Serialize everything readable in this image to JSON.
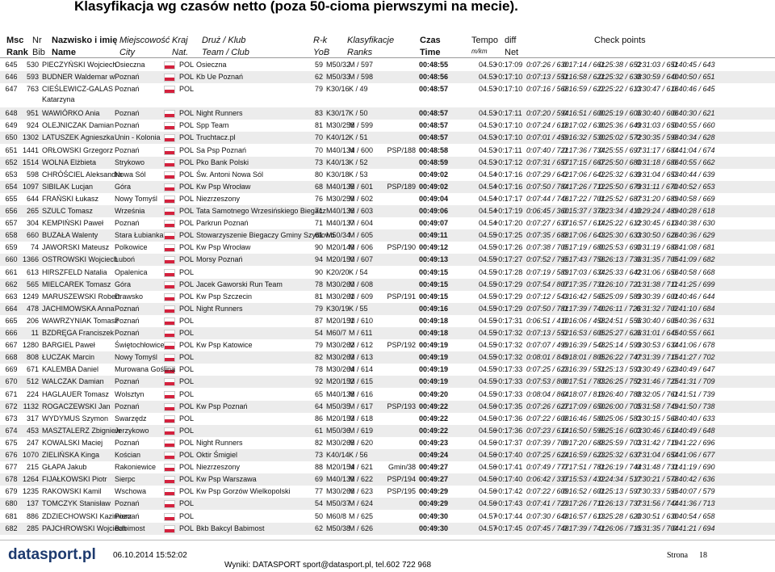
{
  "title": "Klasyfikacja wg czasów netto (poza 50-cioma pierwszymi na mecie).",
  "header": [
    [
      "Msc",
      "Rank"
    ],
    [
      "Nr",
      "Bib"
    ],
    [
      "Nazwisko i imię",
      "Name"
    ],
    [
      "Miejscowość",
      "City"
    ],
    [
      "Kraj",
      "Nat."
    ],
    [
      "Druż / Klub",
      "Team / Club"
    ],
    [
      "R-k",
      "YoB"
    ],
    [
      "Klasyfikacje",
      "Ranks"
    ],
    [
      "Czas",
      "Time"
    ],
    [
      "Tempo",
      "m/km"
    ],
    [
      "diff",
      "Net"
    ],
    [
      "Check points"
    ]
  ],
  "rows": [
    [
      "645",
      "530",
      "PIECZYŃSKI Wojciech",
      "Osieczna",
      "POL",
      "Osieczna",
      "59",
      "M50/32",
      "M / 597",
      null,
      "00:48:55",
      "04.53",
      "+0:17:09",
      "0:07:26 / 630",
      "0:17:14 / 661",
      "0:25:38 / 652",
      "0:31:03 / 651",
      "0:40:45 / 643"
    ],
    [
      "646",
      "593",
      "BUDNER Waldemar w.",
      "Poznań",
      "POL",
      "Kb Ue Poznań",
      "62",
      "M50/33",
      "M / 598",
      null,
      "00:48:56",
      "04.53",
      "+0:17:10",
      "0:07:13 / 551",
      "0:16:58 / 621",
      "0:25:32 / 638",
      "0:30:59 / 640",
      "0:40:50 / 651"
    ],
    [
      "647",
      "763",
      "CIEŚLEWICZ-GALAS\nKatarzyna",
      "Poznań",
      "POL",
      null,
      "79",
      "K30/16",
      "K / 49",
      null,
      "00:48:57",
      "04.53",
      "+0:17:10",
      "0:07:16 / 568",
      "0:16:59 / 622",
      "0:25:22 / 613",
      "0:30:47 / 616",
      "0:40:46 / 645"
    ],
    [
      "648",
      "951",
      "WAWIÓRKO Ania",
      "Poznań",
      "POL",
      "Night Runners",
      "83",
      "K30/17",
      "K / 50",
      null,
      "00:48:57",
      "04.53",
      "+0:17:11",
      "0:07:20 / 594",
      "0:16:51 / 600",
      "0:25:19 / 606",
      "0:30:40 / 606",
      "0:40:30 / 621"
    ],
    [
      "649",
      "924",
      "OLEJNICZAK Damian",
      "Poznań",
      "POL",
      "Spp Team",
      "81",
      "M30/258",
      "M / 599",
      null,
      "00:48:57",
      "04.53",
      "+0:17:10",
      "0:07:24 / 618",
      "0:17:02 / 630",
      "0:25:36 / 649",
      "0:31:03 / 650",
      "0:40:55 / 660"
    ],
    [
      "650",
      "1302",
      "LATUSZEK Agnieszka",
      "Unin - Kolonia",
      "POL",
      "Truchtacz.pl",
      "70",
      "K40/12",
      "K / 51",
      null,
      "00:48:57",
      "04.53",
      "+0:17:10",
      "0:07:01 / 459",
      "0:16:32 / 530",
      "0:25:02 / 572",
      "0:30:35 / 598",
      "0:40:34 / 628"
    ],
    [
      "651",
      "1441",
      "ORŁOWSKI Grzegorz",
      "Poznań",
      "POL",
      "Sa Psp Poznań",
      "70",
      "M40/134",
      "M / 600",
      "PSP/188",
      "00:48:58",
      "04.53",
      "+0:17:11",
      "0:07:40 / 721",
      "0:17:36 / 734",
      "0:25:55 / 697",
      "0:31:17 / 684",
      "0:41:04 / 674"
    ],
    [
      "652",
      "1514",
      "WOLNA Elżbieta",
      "Strykowo",
      "POL",
      "Pko Bank Polski",
      "73",
      "K40/13",
      "K / 52",
      null,
      "00:48:59",
      "04.53",
      "+0:17:12",
      "0:07:31 / 657",
      "0:17:15 / 667",
      "0:25:50 / 680",
      "0:31:18 / 686",
      "0:40:55 / 662"
    ],
    [
      "653",
      "598",
      "CHRÓŚCIEL Aleksandra",
      "Nowa Sól",
      "POL",
      "Św. Antoni Nowa Sól",
      "80",
      "K30/18",
      "K / 53",
      null,
      "00:49:02",
      "04.54",
      "+0:17:16",
      "0:07:29 / 642",
      "0:17:06 / 642",
      "0:25:32 / 639",
      "0:31:04 / 653",
      "0:40:44 / 639"
    ],
    [
      "654",
      "1097",
      "SIBILAK Lucjan",
      "Góra",
      "POL",
      "Kw Psp Wrocław",
      "68",
      "M40/135",
      "M / 601",
      "PSP/189",
      "00:49:02",
      "04.54",
      "+0:17:16",
      "0:07:50 / 784",
      "0:17:26 / 712",
      "0:25:50 / 679",
      "0:31:11 / 670",
      "0:40:52 / 653"
    ],
    [
      "655",
      "644",
      "FRAŃSKI Łukasz",
      "Nowy Tomyśl",
      "POL",
      "Niezrzeszony",
      "76",
      "M30/259",
      "M / 602",
      null,
      "00:49:04",
      "04.54",
      "+0:17:17",
      "0:07:44 / 746",
      "0:17:22 / 701",
      "0:25:52 / 687",
      "0:31:20 / 689",
      "0:40:58 / 669"
    ],
    [
      "656",
      "265",
      "SZULC Tomasz",
      "Września",
      "POL",
      "Tata Samotnego Wrzesińskiego Biegacz",
      "71",
      "M40/136",
      "M / 603",
      null,
      "00:49:06",
      "04.54",
      "+0:17:19",
      "0:06:45 / 360",
      "0:15:37 / 378",
      "0:23:34 / 410",
      "0:29:24 / 489",
      "0:40:28 / 618"
    ],
    [
      "657",
      "304",
      "KEMPIŃSKI Paweł",
      "Poznań",
      "POL",
      "Parkrun Poznań",
      "71",
      "M40/137",
      "M / 604",
      null,
      "00:49:07",
      "04.54",
      "+0:17:20",
      "0:07:27 / 637",
      "0:16:57 / 614",
      "0:25:22 / 612",
      "0:30:45 / 613",
      "0:40:38 / 630"
    ],
    [
      "658",
      "660",
      "BUZAŁA Walenty",
      "Stara Łubianka",
      "POL",
      "Stowarzyszenie Biegaczy Gminy Szydłowo",
      "61",
      "M50/34",
      "M / 605",
      null,
      "00:49:11",
      "04.55",
      "+0:17:25",
      "0:07:35 / 688",
      "0:17:06 / 643",
      "0:25:30 / 633",
      "0:30:50 / 626",
      "0:40:36 / 629"
    ],
    [
      "659",
      "74",
      "JAWORSKI Mateusz",
      "Polkowice",
      "POL",
      "Kw Psp Wrocław",
      "90",
      "M20/149",
      "M / 606",
      "PSP/190",
      "00:49:12",
      "04.55",
      "+0:17:26",
      "0:07:38 / 705",
      "0:17:19 / 680",
      "0:25:53 / 690",
      "0:31:19 / 688",
      "0:41:08 / 681"
    ],
    [
      "660",
      "1366",
      "OSTROWSKI Wojciech",
      "Luboń",
      "POL",
      "Morsy Poznań",
      "94",
      "M20/150",
      "M / 607",
      null,
      "00:49:13",
      "04.55",
      "+0:17:27",
      "0:07:52 / 795",
      "0:17:43 / 756",
      "0:26:13 / 736",
      "0:31:35 / 705",
      "0:41:09 / 682"
    ],
    [
      "661",
      "613",
      "HIRSZFELD Natalia",
      "Opalenica",
      "POL",
      null,
      "90",
      "K20/20",
      "K / 54",
      null,
      "00:49:15",
      "04.55",
      "+0:17:28",
      "0:07:19 / 589",
      "0:17:03 / 634",
      "0:25:33 / 642",
      "0:31:06 / 656",
      "0:40:58 / 668"
    ],
    [
      "662",
      "565",
      "MIELCAREK Tomasz",
      "Góra",
      "POL",
      "Jacek Gaworski Run Team",
      "78",
      "M30/260",
      "M / 608",
      null,
      "00:49:15",
      "04.55",
      "+0:17:29",
      "0:07:54 / 807",
      "0:17:35 / 731",
      "0:26:10 / 721",
      "0:31:38 / 711",
      "0:41:25 / 699"
    ],
    [
      "663",
      "1249",
      "MARUSZEWSKI Robert",
      "Drawsko",
      "POL",
      "Kw Psp Szczecin",
      "81",
      "M30/261",
      "M / 609",
      "PSP/191",
      "00:49:15",
      "04.55",
      "+0:17:29",
      "0:07:12 / 543",
      "0:16:42 / 565",
      "0:25:09 / 589",
      "0:30:39 / 601",
      "0:40:46 / 644"
    ],
    [
      "664",
      "478",
      "JACHIMOWSKA Anna",
      "Poznań",
      "POL",
      "Night Runners",
      "79",
      "K30/19",
      "K / 55",
      null,
      "00:49:16",
      "04.55",
      "+0:17:29",
      "0:07:50 / 781",
      "0:17:39 / 740",
      "0:26:11 / 726",
      "0:31:32 / 702",
      "0:41:10 / 684"
    ],
    [
      "665",
      "206",
      "WAWRZYNIAK Tomasz",
      "Poznań",
      "POL",
      null,
      "87",
      "M20/151",
      "M / 610",
      null,
      "00:49:18",
      "04.55",
      "+0:17:31",
      "0:06:51 / 410",
      "0:16:06 / 458",
      "0:24:51 / 556",
      "0:30:40 / 605",
      "0:40:36 / 631"
    ],
    [
      "666",
      "11",
      "BZDRĘGA Franciszek",
      "Poznań",
      "POL",
      null,
      "54",
      "M60/7",
      "M / 611",
      null,
      "00:49:18",
      "04.55",
      "+0:17:32",
      "0:07:13 / 552",
      "0:16:53 / 605",
      "0:25:27 / 626",
      "0:31:01 / 645",
      "0:40:55 / 661"
    ],
    [
      "667",
      "1280",
      "BARGIEL Paweł",
      "Świętochłowice",
      "POL",
      "Kw Psp Katowice",
      "79",
      "M30/262",
      "M / 612",
      "PSP/192",
      "00:49:19",
      "04.55",
      "+0:17:32",
      "0:07:07 / 499",
      "0:16:39 / 548",
      "0:25:14 / 599",
      "0:30:53 / 634",
      "0:41:06 / 678"
    ],
    [
      "668",
      "808",
      "ŁUCZAK Marcin",
      "Nowy Tomyśl",
      "POL",
      null,
      "82",
      "M30/263",
      "M / 613",
      null,
      "00:49:19",
      "04.55",
      "+0:17:32",
      "0:08:01 / 849",
      "0:18:01 / 805",
      "0:26:22 / 747",
      "0:31:39 / 715",
      "0:41:27 / 702"
    ],
    [
      "669",
      "671",
      "KALEMBA Daniel",
      "Murowana Goślina",
      "POL",
      null,
      "78",
      "M30/264",
      "M / 614",
      null,
      "00:49:19",
      "04.55",
      "+0:17:33",
      "0:07:25 / 623",
      "0:16:39 / 551",
      "0:25:13 / 593",
      "0:30:49 / 623",
      "0:40:49 / 647"
    ],
    [
      "670",
      "512",
      "WALCZAK Damian",
      "Poznań",
      "POL",
      null,
      "92",
      "M20/152",
      "M / 615",
      null,
      "00:49:19",
      "04.55",
      "+0:17:33",
      "0:07:53 / 800",
      "0:17:51 / 783",
      "0:26:25 / 752",
      "0:31:46 / 725",
      "0:41:31 / 709"
    ],
    [
      "671",
      "224",
      "HAGLAUER Tomasz",
      "Wolsztyn",
      "POL",
      null,
      "65",
      "M40/138",
      "M / 616",
      null,
      "00:49:20",
      "04.55",
      "+0:17:33",
      "0:08:04 / 864",
      "0:18:07 / 819",
      "0:26:40 / 788",
      "0:32:05 / 761",
      "0:41:51 / 739"
    ],
    [
      "672",
      "1132",
      "ROGACZEWSKI Jan",
      "Poznań",
      "POL",
      "Kw Psp Poznań",
      "64",
      "M50/35",
      "M / 617",
      "PSP/193",
      "00:49:22",
      "04.56",
      "+0:17:35",
      "0:07:26 / 627",
      "0:17:09 / 650",
      "0:26:00 / 705",
      "0:31:58 / 749",
      "0:41:50 / 738"
    ],
    [
      "673",
      "317",
      "WYDYMUS Szymon",
      "Swarzędz",
      "POL",
      null,
      "86",
      "M20/153",
      "M / 618",
      null,
      "00:49:22",
      "04.56",
      "+0:17:36",
      "0:07:22 / 608",
      "0:16:46 / 580",
      "0:25:06 / 583",
      "0:30:15 / 568",
      "0:40:40 / 633"
    ],
    [
      "674",
      "453",
      "MASZTALERZ Zbigniew",
      "Jerzykowo",
      "POL",
      null,
      "61",
      "M50/36",
      "M / 619",
      null,
      "00:49:22",
      "04.56",
      "+0:17:36",
      "0:07:23 / 614",
      "0:16:50 / 596",
      "0:25:16 / 603",
      "0:30:46 / 614",
      "0:40:49 / 648"
    ],
    [
      "675",
      "247",
      "KOWALSKI Maciej",
      "Poznań",
      "POL",
      "Night Runners",
      "82",
      "M30/265",
      "M / 620",
      null,
      "00:49:23",
      "04.56",
      "+0:17:37",
      "0:07:39 / 709",
      "0:17:20 / 688",
      "0:25:59 / 703",
      "0:31:42 / 719",
      "0:41:22 / 696"
    ],
    [
      "676",
      "1070",
      "ZIELIŃSKA Kinga",
      "Kościan",
      "POL",
      "Oktir Śmigiel",
      "73",
      "K40/14",
      "K / 56",
      null,
      "00:49:24",
      "04.56",
      "+0:17:40",
      "0:07:25 / 624",
      "0:16:59 / 623",
      "0:25:32 / 637",
      "0:31:04 / 654",
      "0:41:06 / 677"
    ],
    [
      "677",
      "215",
      "GŁAPA Jakub",
      "Rakoniewice",
      "POL",
      "Niezrzeszony",
      "88",
      "M20/154",
      "M / 621",
      "Gmin/38",
      "00:49:27",
      "04.56",
      "+0:17:41",
      "0:07:49 / 777",
      "0:17:51 / 781",
      "0:26:19 / 744",
      "0:31:48 / 731",
      "0:41:19 / 690"
    ],
    [
      "678",
      "1264",
      "FIJAŁKOWSKI Piotr",
      "Sierpc",
      "POL",
      "Kw Psp Warszawa",
      "69",
      "M40/139",
      "M / 622",
      "PSP/194",
      "00:49:27",
      "04.56",
      "+0:17:40",
      "0:06:42 / 337",
      "0:15:53 / 432",
      "0:24:34 / 517",
      "0:30:21 / 578",
      "0:40:42 / 636"
    ],
    [
      "679",
      "1235",
      "RAKOWSKI Kamil",
      "Wschowa",
      "POL",
      "Kw Psp Gorzów Wielkopolski",
      "77",
      "M30/266",
      "M / 623",
      "PSP/195",
      "00:49:29",
      "04.56",
      "+0:17:42",
      "0:07:22 / 609",
      "0:16:52 / 601",
      "0:25:13 / 597",
      "0:30:33 / 595",
      "0:40:07 / 579"
    ],
    [
      "680",
      "137",
      "TOMCZYK Stanisław",
      "Poznań",
      "POL",
      null,
      "54",
      "M50/37",
      "M / 624",
      null,
      "00:49:29",
      "04.56",
      "+0:17:43",
      "0:07:41 / 723",
      "0:17:26 / 711",
      "0:26:13 / 737",
      "0:31:56 / 744",
      "0:41:36 / 713"
    ],
    [
      "681",
      "886",
      "ZDZIECHOWSKI Kazimierz",
      "Poznań",
      "POL",
      null,
      "50",
      "M60/8",
      "M / 625",
      null,
      "00:49:30",
      "04.57",
      "+0:17:44",
      "0:07:30 / 648",
      "0:16:57 / 613",
      "0:25:28 / 620",
      "0:30:51 / 630",
      "0:40:54 / 658"
    ],
    [
      "682",
      "285",
      "PAJCHROWSKI Wojciech",
      "Babimost",
      "POL",
      "Bkb Bakcyl Babimost",
      "62",
      "M50/38",
      "M / 626",
      null,
      "00:49:30",
      "04.57",
      "+0:17:45",
      "0:07:45 / 748",
      "0:17:39 / 741",
      "0:26:06 / 715",
      "0:31:35 / 704",
      "0:41:21 / 694"
    ]
  ],
  "footer": {
    "logo": "datasport.pl",
    "timestamp": "06.10.2014 15:52:02",
    "contact": "Wyniki: DATASPORT sport@datasport.pl, tel.602 722 968",
    "page_label": "Strona",
    "page_number": "18"
  }
}
